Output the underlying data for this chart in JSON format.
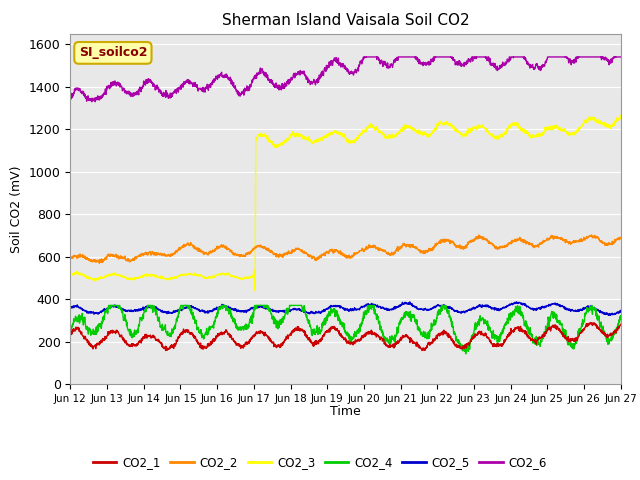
{
  "title": "Sherman Island Vaisala Soil CO2",
  "ylabel": "Soil CO2 (mV)",
  "xlabel": "Time",
  "legend_label": "SI_soilco2",
  "ylim": [
    0,
    1650
  ],
  "yticks": [
    0,
    200,
    400,
    600,
    800,
    1000,
    1200,
    1400,
    1600
  ],
  "xtick_labels": [
    "Jun 12",
    "Jun 13",
    "Jun 14",
    "Jun 15",
    "Jun 16",
    "Jun 17",
    "Jun 18",
    "Jun 19",
    "Jun 20",
    "Jun 21",
    "Jun 22",
    "Jun 23",
    "Jun 24",
    "Jun 25",
    "Jun 26",
    "Jun 27"
  ],
  "colors": {
    "CO2_1": "#cc0000",
    "CO2_2": "#ff8800",
    "CO2_3": "#ffff00",
    "CO2_4": "#00cc00",
    "CO2_5": "#0000cc",
    "CO2_6": "#aa00aa"
  },
  "bg_color": "#e8e8e8",
  "fig_bg": "#ffffff",
  "linewidth": 1.0,
  "legend_box_color": "#ffffaa",
  "legend_box_edge": "#ccaa00",
  "legend_text_color": "#880000"
}
